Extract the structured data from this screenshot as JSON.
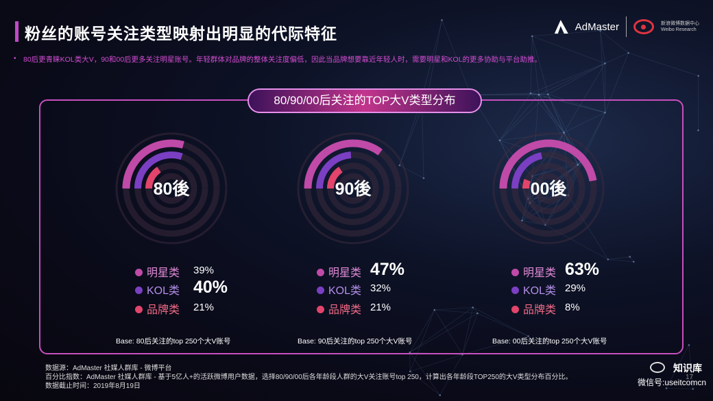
{
  "page": {
    "title": "粉丝的账号关注类型映射出明显的代际特征",
    "note": "80后更青睐KOL类大V，90和00后更多关注明星账号。年轻群体对品牌的整体关注度偏低，因此当品牌想要靠近年轻人时，需要明星和KOL的更多协助与平台助推。",
    "note_bullet": "•",
    "panel_title": "80/90/00后关注的TOP大V类型分布",
    "logo_admaster": "AdMaster",
    "logo_weibo_text": "新浪微博数据中心 Weibo Research",
    "footer_source": "数据源：AdMaster 社媒人群库 - 微博平台",
    "footer_method": "百分比指数：AdMaster 社媒人群库 - 基于5亿人+的活跃微博用户数据，选择80/90/00后各年龄段人群的大V关注账号top 250，计算出各年龄段TOP250的大V类型分布百分比。",
    "footer_date": "数据截止时间：2019年8月19日",
    "wechat_name": "知识库",
    "wechat_id": "微信号:useitcomcn",
    "page_number": "17"
  },
  "colors": {
    "star": "#c04aa8",
    "kol": "#7a3fc2",
    "brand": "#e2446b",
    "track": "#3a2a3c",
    "accent": "#c84fbf"
  },
  "chart_data": {
    "type": "radial-bar",
    "title": "80/90/00后关注的TOP大V类型分布",
    "series_names": [
      "明星类",
      "KOL类",
      "品牌类"
    ],
    "groups": [
      {
        "label": "80後",
        "base": "Base: 80后关注的top 250个大V账号",
        "values": [
          {
            "name": "明星类",
            "display": "39%",
            "value": 39,
            "highlight": false
          },
          {
            "name": "KOL类",
            "display": "40%",
            "value": 40,
            "highlight": true
          },
          {
            "name": "品牌类",
            "display": "21%",
            "value": 21,
            "highlight": false
          }
        ]
      },
      {
        "label": "90後",
        "base": "Base: 90后关注的top 250个大V账号",
        "values": [
          {
            "name": "明星类",
            "display": "47%",
            "value": 47,
            "highlight": true
          },
          {
            "name": "KOL类",
            "display": "32%",
            "value": 32,
            "highlight": false
          },
          {
            "name": "品牌类",
            "display": "21%",
            "value": 21,
            "highlight": false
          }
        ]
      },
      {
        "label": "00後",
        "base": "Base: 00后关注的top 250个大V账号",
        "values": [
          {
            "name": "明星类",
            "display": "63%",
            "value": 63,
            "highlight": true
          },
          {
            "name": "KOL类",
            "display": "29%",
            "value": 29,
            "highlight": false
          },
          {
            "name": "品牌类",
            "display": "8%",
            "value": 8,
            "highlight": false
          }
        ]
      }
    ]
  }
}
